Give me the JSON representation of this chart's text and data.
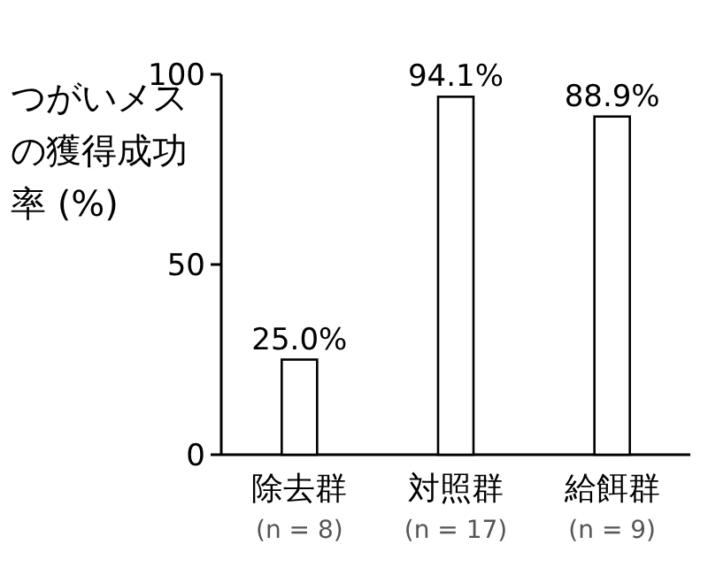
{
  "chart_data": {
    "type": "bar",
    "ylabel": "つがいメスの獲得成功率 (%)",
    "categories": [
      "除去群\n(n = 8)",
      "対照群\n(n = 17)",
      "給餌群\n(n = 9)"
    ],
    "values": [
      25.0,
      94.1,
      88.9
    ],
    "value_labels": [
      "25.0%",
      "94.1%",
      "88.9%"
    ],
    "color": "#ffffff",
    "ylim": [
      0,
      100
    ],
    "yticks": [
      0,
      50,
      100
    ],
    "grid": false
  }
}
